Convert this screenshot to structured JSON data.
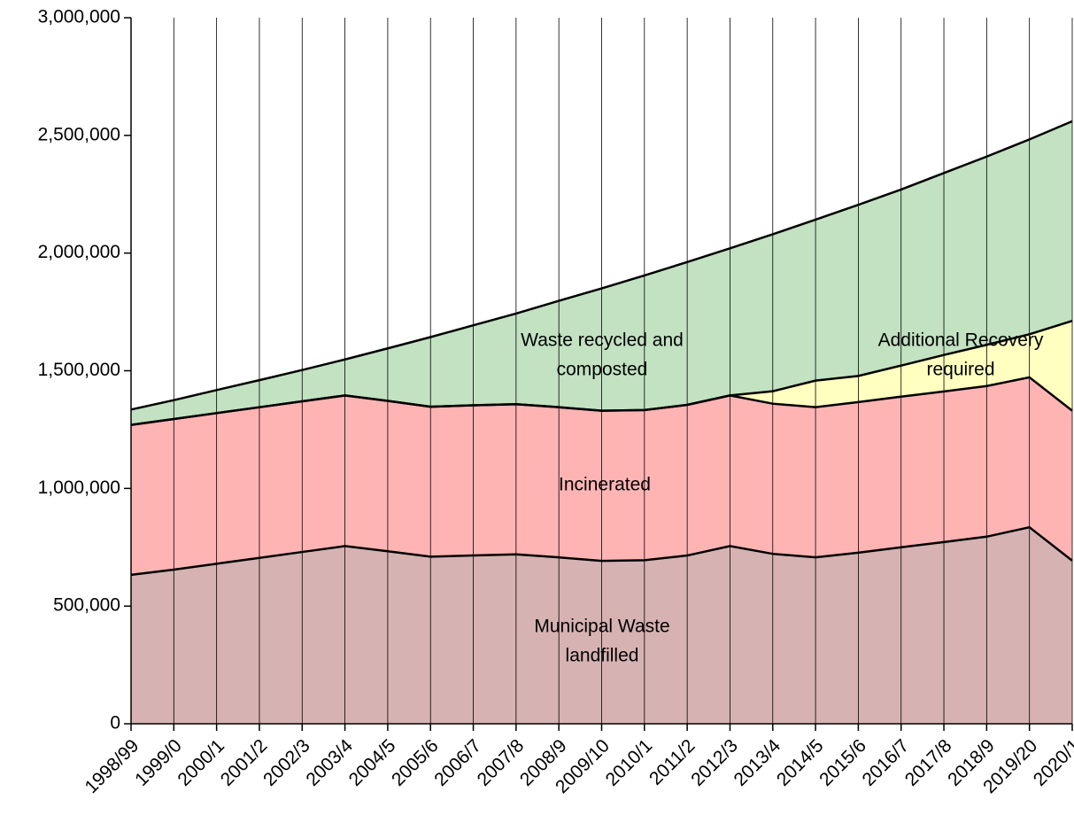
{
  "chart_data": {
    "type": "stacked_area",
    "categories": [
      "1998/99",
      "1999/0",
      "2000/1",
      "2001/2",
      "2002/3",
      "2003/4",
      "2004/5",
      "2005/6",
      "2006/7",
      "2007/8",
      "2008/9",
      "2009/10",
      "2010/1",
      "2011/2",
      "2012/3",
      "2013/4",
      "2014/5",
      "2015/6",
      "2016/7",
      "2017/8",
      "2018/9",
      "2019/20",
      "2020/1"
    ],
    "series": [
      {
        "name": "Municipal Waste landfilled",
        "color": "#d6b2b2",
        "values": [
          633000,
          655000,
          680000,
          705000,
          730000,
          755000,
          733000,
          710000,
          715000,
          720000,
          707000,
          692000,
          695000,
          715000,
          755000,
          722000,
          707000,
          727000,
          750000,
          772000,
          795000,
          835000,
          693000
        ]
      },
      {
        "name": "Incinerated",
        "color": "#ffb4b4",
        "values": [
          637000,
          640000,
          640000,
          640000,
          640000,
          640000,
          639000,
          637000,
          638000,
          638000,
          638000,
          638000,
          638000,
          640000,
          640000,
          638000,
          638000,
          640000,
          640000,
          640000,
          640000,
          637000,
          637000
        ]
      },
      {
        "name": "Additional Recovery required",
        "color": "#ffffc0",
        "values": [
          0,
          0,
          0,
          0,
          0,
          0,
          0,
          0,
          0,
          0,
          0,
          0,
          0,
          0,
          0,
          53000,
          113000,
          111000,
          132000,
          155000,
          175000,
          183000,
          382000
        ]
      },
      {
        "name": "Waste recycled and composted",
        "color": "#c2e2c2",
        "values": [
          65000,
          80000,
          98000,
          115000,
          133000,
          153000,
          223000,
          296000,
          340000,
          385000,
          452000,
          520000,
          572000,
          607000,
          625000,
          667000,
          684000,
          727000,
          748000,
          773000,
          800000,
          828000,
          848000
        ]
      }
    ],
    "annotations": [
      {
        "lines": [
          "Waste recycled and",
          "composted"
        ]
      },
      {
        "lines": [
          "Additional Recovery",
          "required"
        ]
      },
      {
        "lines": [
          "Incinerated"
        ]
      },
      {
        "lines": [
          "Municipal Waste",
          "landfilled"
        ]
      }
    ],
    "ylim": [
      0,
      3000000
    ],
    "yticks": [
      0,
      {
        "value": 500000,
        "label": "500,000"
      },
      {
        "value": 1000000,
        "label": "1,000,000"
      },
      {
        "value": 1500000,
        "label": "1,500,000"
      },
      {
        "value": 2000000,
        "label": "2,000,000"
      },
      {
        "value": 2500000,
        "label": "2,500,000"
      },
      {
        "value": 3000000,
        "label": "3,000,000"
      }
    ],
    "grid": true
  }
}
